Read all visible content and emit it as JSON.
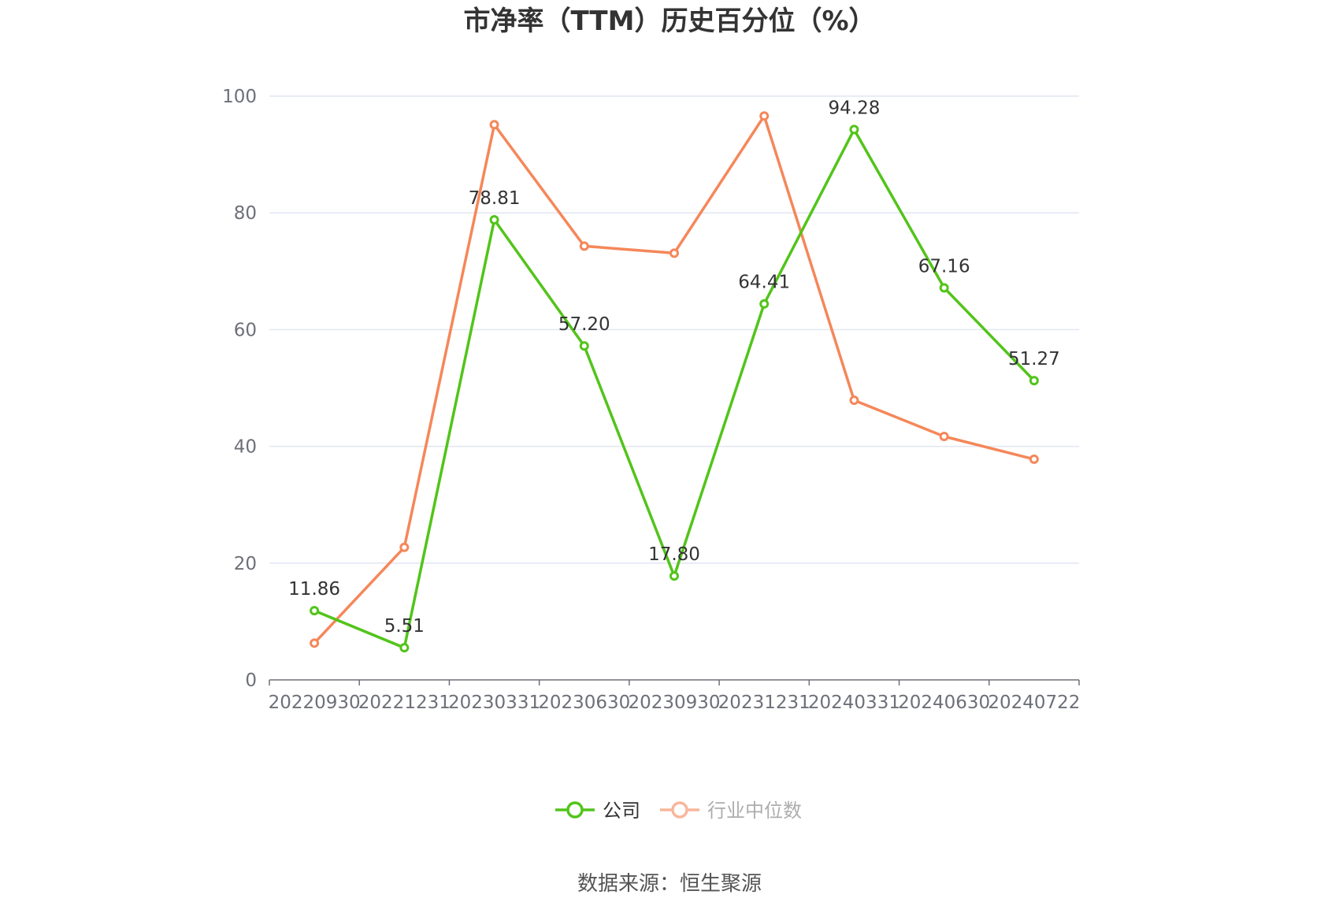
{
  "chart_data": {
    "type": "line",
    "title": "市净率（TTM）历史百分位（%）",
    "categories": [
      "20220930",
      "20221231",
      "20230331",
      "20230630",
      "20230930",
      "20231231",
      "20240331",
      "20240630",
      "20240722"
    ],
    "ylim": [
      0,
      100
    ],
    "yticks": [
      "0",
      "20",
      "40",
      "60",
      "80",
      "100"
    ],
    "grid": true,
    "legend_position": "bottom-center",
    "series": [
      {
        "name": "公司",
        "color": "#52c41a",
        "values": [
          11.86,
          5.51,
          78.81,
          57.2,
          17.8,
          64.41,
          94.28,
          67.16,
          51.27
        ],
        "labels": [
          "11.86",
          "5.51",
          "78.81",
          "57.20",
          "17.80",
          "64.41",
          "94.28",
          "67.16",
          "51.27"
        ]
      },
      {
        "name": "行业中位数",
        "color": "#f5875a",
        "values": [
          6.3,
          22.7,
          95.1,
          74.3,
          73.1,
          96.6,
          47.9,
          41.7,
          37.8
        ]
      }
    ]
  },
  "source": "数据来源：恒生聚源"
}
